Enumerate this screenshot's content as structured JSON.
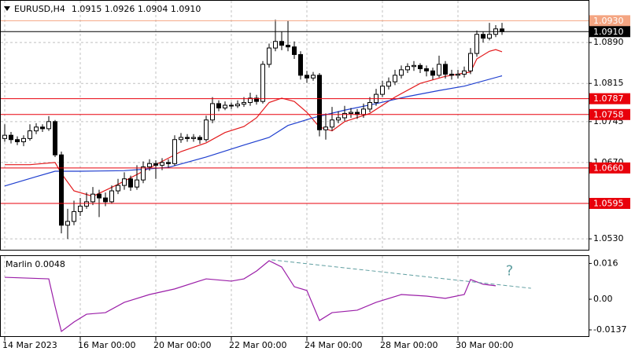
{
  "chart_data": [
    {
      "type": "candlestick",
      "title": "EURUSD,H4",
      "ohlc_label": "1.0915 1.0926 1.0904 1.0910",
      "up_color": "#ffffff",
      "down_color": "#000000",
      "ylim": [
        1.051,
        1.0968
      ],
      "yticks": [
        {
          "value": 1.089,
          "label": "1.0890"
        },
        1.0815,
        1.0745,
        {
          "value": 1.067,
          "label": "1.0670"
        },
        {
          "value": 1.053,
          "label": "1.0530"
        }
      ],
      "xticks": [
        {
          "value": 0,
          "label": "14 Mar 2023"
        },
        {
          "value": 12,
          "label": "16 Mar 00:00"
        },
        {
          "value": 24,
          "label": "20 Mar 00:00"
        },
        {
          "value": 36,
          "label": "22 Mar 00:00"
        },
        {
          "value": 48,
          "label": "24 Mar 00:00"
        },
        {
          "value": 60,
          "label": "28 Mar 00:00"
        },
        {
          "value": 72,
          "label": "30 Mar 00:00"
        }
      ],
      "grid": true,
      "open": [
        1.0714,
        1.072,
        1.0712,
        1.0708,
        1.0714,
        1.0728,
        1.0735,
        1.0732,
        1.0745,
        1.0684,
        1.0555,
        1.0562,
        1.058,
        1.059,
        1.0598,
        1.0612,
        1.0605,
        1.0598,
        1.0618,
        1.0628,
        1.064,
        1.0625,
        1.0638,
        1.0662,
        1.0668,
        1.0665,
        1.067,
        1.0668,
        1.0712,
        1.0716,
        1.0714,
        1.0716,
        1.0712,
        1.0748,
        1.0778,
        1.077,
        1.0775,
        1.0774,
        1.0777,
        1.078,
        1.0788,
        1.0782,
        1.085,
        1.088,
        1.0892,
        1.0885,
        1.0882,
        1.0868,
        1.083,
        1.0825,
        1.083,
        1.073,
        1.0735,
        1.0748,
        1.0752,
        1.076,
        1.0762,
        1.0758,
        1.0768,
        1.078,
        1.0795,
        1.081,
        1.0818,
        1.083,
        1.084,
        1.0846,
        1.0848,
        1.0842,
        1.0838,
        1.083,
        1.085,
        1.0832,
        1.083,
        1.0832,
        1.0838,
        1.087,
        1.0905,
        1.0898,
        1.0905,
        1.0915
      ],
      "high": [
        1.074,
        1.0726,
        1.0718,
        1.072,
        1.074,
        1.0742,
        1.074,
        1.0755,
        1.0748,
        1.069,
        1.0585,
        1.06,
        1.0605,
        1.0615,
        1.0625,
        1.062,
        1.0615,
        1.0628,
        1.064,
        1.0652,
        1.0646,
        1.0665,
        1.0672,
        1.0676,
        1.0674,
        1.0678,
        1.0676,
        1.072,
        1.0724,
        1.0722,
        1.0722,
        1.072,
        1.0756,
        1.079,
        1.0784,
        1.0782,
        1.078,
        1.0784,
        1.079,
        1.0798,
        1.0794,
        1.0856,
        1.0888,
        1.0932,
        1.091,
        1.093,
        1.0892,
        1.0874,
        1.0838,
        1.0836,
        1.0834,
        1.076,
        1.0772,
        1.0764,
        1.0774,
        1.077,
        1.0768,
        1.0778,
        1.079,
        1.0805,
        1.082,
        1.0826,
        1.084,
        1.0848,
        1.0852,
        1.0856,
        1.0852,
        1.0848,
        1.0844,
        1.0866,
        1.0856,
        1.084,
        1.084,
        1.0846,
        1.088,
        1.0912,
        1.091,
        1.0926,
        1.0922,
        1.0926
      ],
      "low": [
        1.0708,
        1.0705,
        1.0702,
        1.07,
        1.071,
        1.0722,
        1.0726,
        1.0728,
        1.068,
        1.054,
        1.053,
        1.0555,
        1.0572,
        1.0585,
        1.0592,
        1.057,
        1.059,
        1.0594,
        1.0612,
        1.062,
        1.0618,
        1.062,
        1.0632,
        1.0655,
        1.064,
        1.0656,
        1.066,
        1.0664,
        1.0706,
        1.0708,
        1.0708,
        1.0704,
        1.0708,
        1.0742,
        1.0764,
        1.0766,
        1.0768,
        1.077,
        1.0772,
        1.0774,
        1.0776,
        1.0778,
        1.0844,
        1.0874,
        1.0876,
        1.0874,
        1.086,
        1.0822,
        1.0816,
        1.082,
        1.0718,
        1.0712,
        1.0728,
        1.0742,
        1.0746,
        1.0752,
        1.075,
        1.0752,
        1.0762,
        1.0774,
        1.079,
        1.0804,
        1.0812,
        1.0824,
        1.0834,
        1.0838,
        1.0834,
        1.0828,
        1.0822,
        1.0826,
        1.0824,
        1.0822,
        1.0824,
        1.0826,
        1.0832,
        1.0864,
        1.089,
        1.0894,
        1.09,
        1.0904
      ],
      "close": [
        1.072,
        1.0712,
        1.0708,
        1.0714,
        1.0728,
        1.0735,
        1.0732,
        1.0745,
        1.0684,
        1.0555,
        1.0562,
        1.058,
        1.059,
        1.0598,
        1.0612,
        1.0605,
        1.0598,
        1.0618,
        1.0628,
        1.064,
        1.0625,
        1.0638,
        1.0662,
        1.0668,
        1.0665,
        1.067,
        1.0668,
        1.0712,
        1.0716,
        1.0714,
        1.0716,
        1.0712,
        1.0748,
        1.0778,
        1.077,
        1.0775,
        1.0774,
        1.0777,
        1.078,
        1.0788,
        1.0782,
        1.085,
        1.088,
        1.0892,
        1.0885,
        1.0882,
        1.0868,
        1.083,
        1.0825,
        1.083,
        1.073,
        1.0735,
        1.0748,
        1.0752,
        1.076,
        1.0762,
        1.0758,
        1.0768,
        1.078,
        1.0795,
        1.081,
        1.0818,
        1.083,
        1.084,
        1.0846,
        1.0848,
        1.0842,
        1.0838,
        1.083,
        1.085,
        1.0832,
        1.083,
        1.0832,
        1.0838,
        1.087,
        1.0905,
        1.0898,
        1.0905,
        1.0915,
        1.091
      ],
      "moving_averages": [
        {
          "color": "#e31a1c",
          "x": [
            0,
            4,
            8,
            9,
            11,
            14,
            18,
            23,
            28,
            32,
            35,
            38,
            40,
            42,
            44,
            46,
            48,
            50,
            52,
            54,
            58,
            62,
            66,
            70,
            74,
            75,
            77,
            78,
            79
          ],
          "values": [
            1.0666,
            1.0666,
            1.067,
            1.065,
            1.0618,
            1.0608,
            1.063,
            1.066,
            1.069,
            1.0706,
            1.0725,
            1.0736,
            1.0752,
            1.078,
            1.0788,
            1.0782,
            1.0762,
            1.0735,
            1.0728,
            1.0745,
            1.076,
            1.079,
            1.0815,
            1.0828,
            1.0836,
            1.086,
            1.0874,
            1.0877,
            1.0873
          ]
        },
        {
          "color": "#1f3fcf",
          "x": [
            0,
            5,
            8,
            12,
            19,
            26,
            32,
            38,
            42,
            45,
            49,
            54,
            59,
            64,
            69,
            73,
            79
          ],
          "values": [
            1.0627,
            1.0644,
            1.0654,
            1.0654,
            1.0655,
            1.0661,
            1.068,
            1.0702,
            1.0716,
            1.0738,
            1.0752,
            1.0766,
            1.0778,
            1.0791,
            1.0802,
            1.081,
            1.0829
          ]
        }
      ],
      "levels": [
        {
          "value": 1.093,
          "label": "1.0930",
          "color": "#f4a582"
        },
        {
          "value": 1.0787,
          "label": "1.0787",
          "color": "#e8000b"
        },
        {
          "value": 1.0758,
          "label": "1.0758",
          "color": "#e8000b"
        },
        {
          "value": 1.066,
          "label": "1.0660",
          "color": "#e8000b"
        },
        {
          "value": 1.0595,
          "label": "1.0595",
          "color": "#e8000b"
        }
      ],
      "current_price": {
        "value": 1.091,
        "label": "1.0910",
        "color": "#000000"
      }
    },
    {
      "type": "line",
      "label": "Marlin 0.0048",
      "color": "#9b1fa8",
      "ylim": [
        -0.0165,
        0.0193
      ],
      "yticks": [
        0.016,
        {
          "value": 0,
          "label": "0.00"
        },
        -0.0137
      ],
      "x": [
        0,
        7,
        8,
        9,
        11,
        13,
        16,
        19,
        23,
        27,
        32,
        36,
        38,
        40,
        42,
        44,
        46,
        48,
        50,
        52,
        56,
        59,
        63,
        67,
        70,
        73,
        74,
        76,
        78
      ],
      "values": [
        0.0098,
        0.0091,
        -0.0032,
        -0.0144,
        -0.0102,
        -0.0067,
        -0.006,
        -0.0014,
        0.0021,
        0.0046,
        0.0091,
        0.0081,
        0.0091,
        0.0126,
        0.0172,
        0.0144,
        0.0056,
        0.0039,
        -0.0095,
        -0.006,
        -0.0049,
        -0.0014,
        0.0021,
        0.0014,
        0.0004,
        0.0021,
        0.0088,
        0.0067,
        0.006
      ],
      "trendline": {
        "color": "#5f9ea0",
        "x": [
          42.4,
          83.6
        ],
        "values": [
          0.0176,
          0.0049
        ]
      },
      "annotation": {
        "text": "?",
        "x": 79.6,
        "value": 0.0125,
        "color": "#5f9ea0"
      }
    }
  ]
}
